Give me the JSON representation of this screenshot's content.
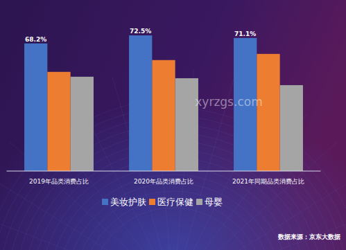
{
  "chart_data": {
    "type": "bar",
    "categories": [
      "2019年品类消费占比",
      "2020年品类消费占比",
      "2021年同期品类消费占比"
    ],
    "series": [
      {
        "name": "美妆护肤",
        "color": "#4472c4",
        "values": [
          68.2,
          72.5,
          71.1
        ],
        "value_labels": [
          "68.2%",
          "72.5%",
          "71.1%"
        ]
      },
      {
        "name": "医疗保健",
        "color": "#ed7d31",
        "values": [
          53,
          59.3,
          62.6
        ]
      },
      {
        "name": "母婴",
        "color": "#a5a5a5",
        "values": [
          50.4,
          49.6,
          45.9
        ]
      }
    ],
    "ylim": [
      0,
      84
    ],
    "data_labels": true,
    "tick_labels": "x",
    "legend": "bottom",
    "source": "数据来源：京东大数据",
    "watermark": "xyrzgs.com"
  }
}
